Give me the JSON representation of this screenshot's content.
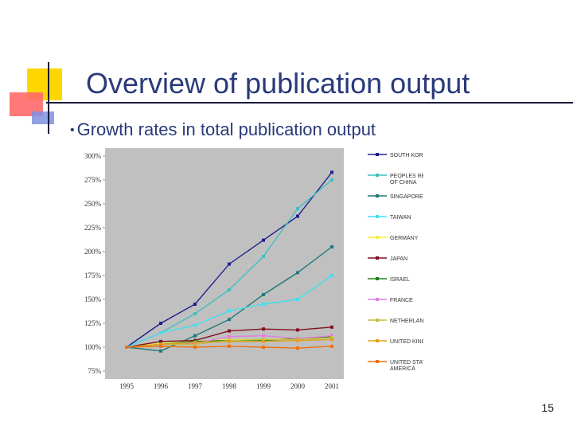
{
  "slide": {
    "title": "Overview of publication output",
    "bullet": "Growth rates in total publication output",
    "page_number": "15"
  },
  "chart_data": {
    "type": "line",
    "x": [
      "1995",
      "1996",
      "1997",
      "1998",
      "1999",
      "2000",
      "2001"
    ],
    "y_ticks": [
      "75%",
      "100%",
      "125%",
      "150%",
      "175%",
      "200%",
      "225%",
      "250%",
      "275%",
      "300%"
    ],
    "ylim": [
      75,
      300
    ],
    "grid": false,
    "legend_position": "right",
    "series": [
      {
        "name": "SOUTH KOREA",
        "color": "#1f1f8f",
        "values": [
          100,
          125,
          145,
          187,
          212,
          237,
          283
        ]
      },
      {
        "name": "PEOPLES REPUBLIC OF CHINA",
        "color": "#40c0c0",
        "values": [
          100,
          115,
          135,
          160,
          195,
          245,
          275
        ]
      },
      {
        "name": "SINGAPORE",
        "color": "#207878",
        "values": [
          100,
          96,
          112,
          129,
          155,
          178,
          205
        ]
      },
      {
        "name": "TAIWAN",
        "color": "#40e0f0",
        "values": [
          100,
          115,
          123,
          138,
          145,
          150,
          175
        ]
      },
      {
        "name": "GERMANY",
        "color": "#f0f040",
        "values": [
          100,
          104,
          106,
          108,
          108,
          109,
          110
        ]
      },
      {
        "name": "JAPAN",
        "color": "#801020",
        "values": [
          100,
          106,
          107,
          117,
          119,
          118,
          121
        ]
      },
      {
        "name": "ISRAEL",
        "color": "#208020",
        "values": [
          100,
          103,
          106,
          107,
          107,
          109,
          111
        ]
      },
      {
        "name": "FRANCE",
        "color": "#e080e0",
        "values": [
          100,
          103,
          104,
          111,
          112,
          109,
          112
        ]
      },
      {
        "name": "NETHERLANDS",
        "color": "#c0c040",
        "values": [
          100,
          103,
          103,
          107,
          108,
          108,
          110
        ]
      },
      {
        "name": "UNITED KINGDOM",
        "color": "#e0a020",
        "values": [
          100,
          103,
          105,
          106,
          106,
          107,
          108
        ]
      },
      {
        "name": "UNITED STATES OF AMERICA",
        "color": "#f07010",
        "values": [
          100,
          101,
          100,
          101,
          100,
          99,
          101
        ]
      }
    ]
  }
}
